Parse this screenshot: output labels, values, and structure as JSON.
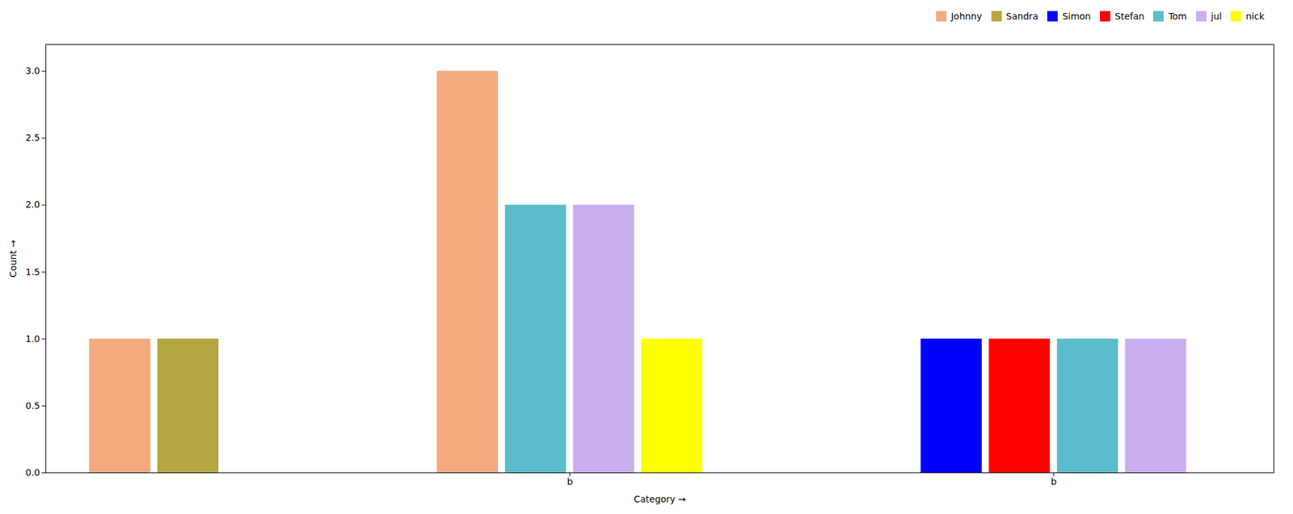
{
  "chart_data": {
    "type": "bar",
    "xlabel": "Category",
    "ylabel": "Count",
    "categories": [
      null,
      "b",
      "b"
    ],
    "series": [
      {
        "name": "Johnny",
        "color": "#F4A97F",
        "values": [
          1,
          3,
          null
        ]
      },
      {
        "name": "Sandra",
        "color": "#B5A642",
        "values": [
          1,
          null,
          null
        ]
      },
      {
        "name": "Simon",
        "color": "#0000FF",
        "values": [
          null,
          null,
          1
        ]
      },
      {
        "name": "Stefan",
        "color": "#FF0000",
        "values": [
          null,
          null,
          1
        ]
      },
      {
        "name": "Tom",
        "color": "#5BBCCC",
        "values": [
          null,
          2,
          1
        ]
      },
      {
        "name": "jul",
        "color": "#C9AEF0",
        "values": [
          null,
          2,
          1
        ]
      },
      {
        "name": "nick",
        "color": "#FFFF00",
        "values": [
          null,
          1,
          null
        ]
      }
    ],
    "ylim": [
      0,
      3.2
    ],
    "yticks": [
      {
        "value": 0,
        "label": "0.0"
      },
      0.5,
      {
        "value": 1,
        "label": "1.0"
      },
      1.5,
      {
        "value": 2,
        "label": "2.0"
      },
      2.5,
      {
        "value": 3,
        "label": "3.0"
      }
    ],
    "grid": false,
    "legend": "upper right"
  }
}
